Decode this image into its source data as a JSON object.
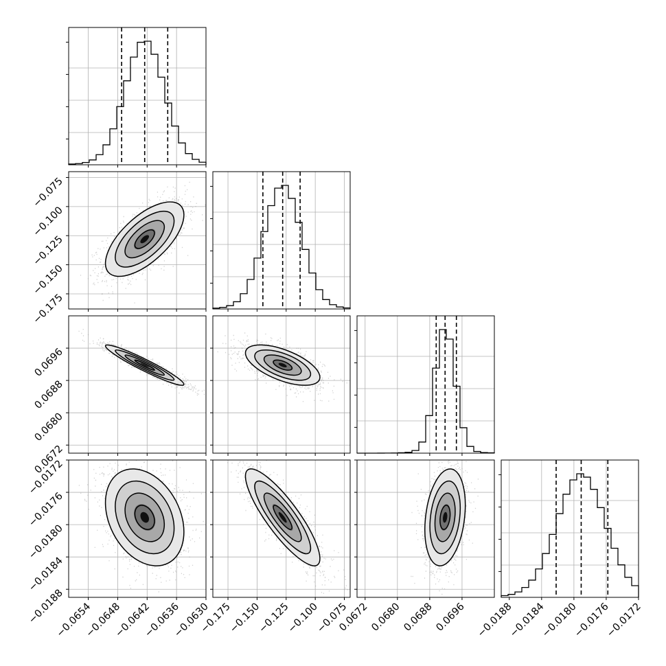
{
  "chart_data": {
    "type": "corner",
    "parameters": [
      {
        "index": 0,
        "median": -0.06425,
        "q16": -0.06472,
        "q84": -0.06378,
        "sigma": 0.0004,
        "range": [
          -0.0658,
          -0.063
        ],
        "ticks": [
          -0.0654,
          -0.0648,
          -0.0642,
          -0.0636,
          -0.063
        ],
        "tick_labels": [
          "−0.0654",
          "−0.0648",
          "−0.0642",
          "−0.0636",
          "−0.0630"
        ]
      },
      {
        "index": 1,
        "median": -0.128,
        "q16": -0.145,
        "q84": -0.113,
        "sigma": 0.016,
        "range": [
          -0.188,
          -0.07
        ],
        "ticks": [
          -0.175,
          -0.15,
          -0.125,
          -0.1,
          -0.075
        ],
        "tick_labels": [
          "−0.175",
          "−0.150",
          "−0.125",
          "−0.100",
          "−0.075"
        ]
      },
      {
        "index": 2,
        "median": 0.06918,
        "q16": 0.06896,
        "q84": 0.06946,
        "sigma": 0.00025,
        "range": [
          0.067,
          0.0704
        ],
        "ticks": [
          0.0672,
          0.068,
          0.0688,
          0.0696
        ],
        "tick_labels": [
          "0.0672",
          "0.0680",
          "0.0688",
          "0.0696"
        ]
      },
      {
        "index": 3,
        "median": -0.01791,
        "q16": -0.01822,
        "q84": -0.01758,
        "sigma": 0.0003,
        "range": [
          -0.0189,
          -0.0172
        ],
        "ticks": [
          -0.0188,
          -0.0184,
          -0.018,
          -0.0176,
          -0.0172
        ],
        "tick_labels": [
          "−0.0188",
          "−0.0184",
          "−0.0180",
          "−0.0176",
          "−0.0172"
        ]
      }
    ],
    "correlations": [
      {
        "pair": [
          0,
          1
        ],
        "rho": 0.65
      },
      {
        "pair": [
          0,
          2
        ],
        "rho": -0.95
      },
      {
        "pair": [
          1,
          2
        ],
        "rho": -0.6
      },
      {
        "pair": [
          0,
          3
        ],
        "rho": -0.3
      },
      {
        "pair": [
          1,
          3
        ],
        "rho": -0.85
      },
      {
        "pair": [
          2,
          3
        ],
        "rho": 0.25
      }
    ],
    "histogram_bins": 20,
    "quantile_lines": "dashed",
    "contour_levels": 4,
    "grid": true,
    "colors": {
      "lines": "#000000",
      "grid": "#b0b0b0",
      "background": "#ffffff"
    }
  }
}
